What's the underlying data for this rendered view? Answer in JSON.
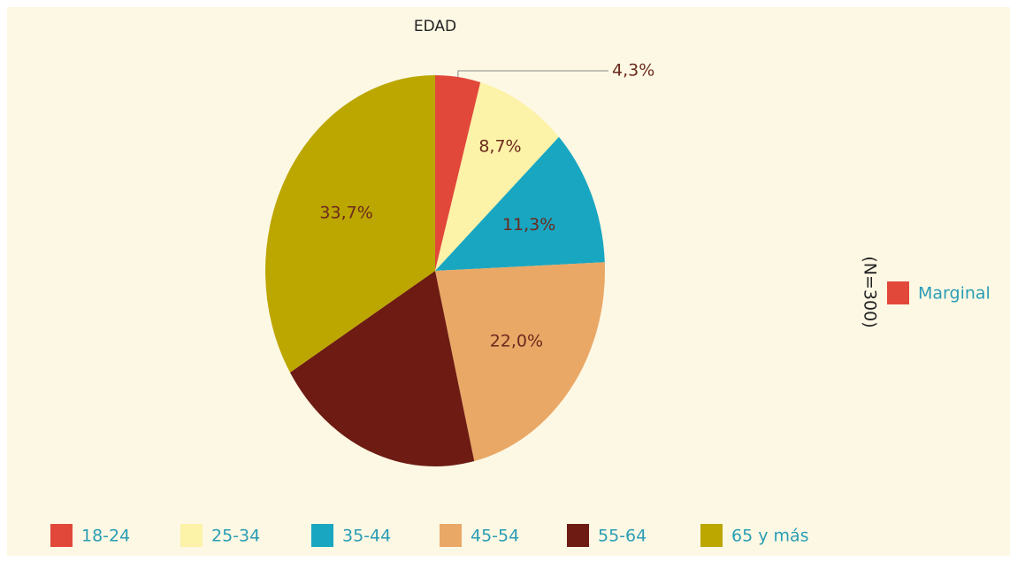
{
  "chart_data": {
    "type": "pie",
    "title": "EDAD",
    "categories": [
      "18-24",
      "25-34",
      "35-44",
      "45-54",
      "55-64",
      "65 y más"
    ],
    "values": [
      4.3,
      8.7,
      11.3,
      22.0,
      20.0,
      33.7
    ],
    "value_labels": [
      "4,3%",
      "8,7%",
      "11,3%",
      "22,0%",
      null,
      "33,7%"
    ],
    "colors": [
      "#e2483a",
      "#fcf2a8",
      "#19a6c1",
      "#e9a866",
      "#6d1b13",
      "#bca600"
    ],
    "annotation": "(N=300)",
    "extra_legend": {
      "name": "Marginal",
      "color": "#e2483a"
    }
  }
}
